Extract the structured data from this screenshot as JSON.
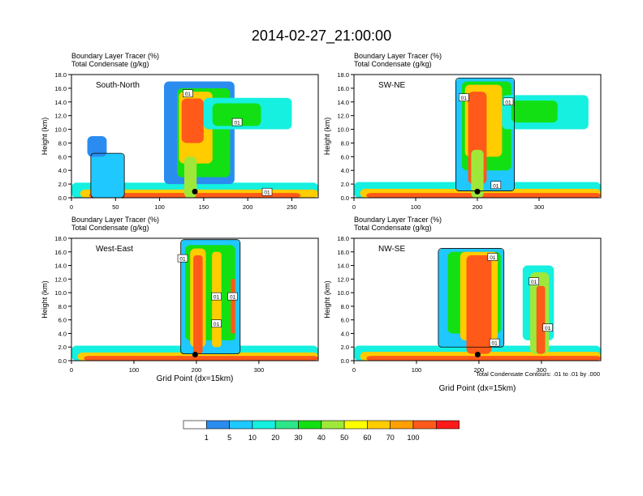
{
  "title": "2014-02-27_21:00:00",
  "contour_note": "Total Condensate Contours: .01 to .01 by .000",
  "xlabel": "Grid Point (dx=15km)",
  "ylabel": "Height (km)",
  "subtitle_line1": "Boundary Layer Tracer   (%)",
  "subtitle_line2": "Total Condensate   (g/kg)",
  "colors": {
    "levels": [
      "#ffffff",
      "#2b8cf0",
      "#1fc8ff",
      "#15f0e0",
      "#2ee68a",
      "#13e013",
      "#9fe83a",
      "#ffff00",
      "#ffcc00",
      "#ffa000",
      "#ff5a1a",
      "#ff1a1a"
    ],
    "contour": "#000000"
  },
  "chart_data": [
    {
      "type": "heatmap",
      "panel": "top-left",
      "label": "South-North",
      "xlim": [
        0,
        280
      ],
      "ylim": [
        0,
        18
      ],
      "xticks": [
        "0",
        "50",
        "100",
        "150",
        "200",
        "250"
      ],
      "xtick_values": [
        0,
        50,
        100,
        150,
        200,
        250
      ],
      "yticks": [
        "0.0",
        "2.0",
        "4.0",
        "6.0",
        "8.0",
        "10.0",
        "12.0",
        "14.0",
        "16.0",
        "18.0"
      ],
      "marker_x": 140,
      "contour_labels": [
        {
          "text": "01",
          "x": 132,
          "y": 15.2
        },
        {
          "text": "01",
          "x": 188,
          "y": 11.0
        },
        {
          "text": "01",
          "x": 222,
          "y": 0.8
        }
      ]
    },
    {
      "type": "heatmap",
      "panel": "top-right",
      "label": "SW-NE",
      "xlim": [
        0,
        400
      ],
      "ylim": [
        0,
        18
      ],
      "xticks": [
        "0",
        "100",
        "200",
        "300"
      ],
      "xtick_values": [
        0,
        100,
        200,
        300
      ],
      "yticks": [
        "0.0",
        "2.0",
        "4.0",
        "6.0",
        "8.0",
        "10.0",
        "12.0",
        "14.0",
        "16.0",
        "18.0"
      ],
      "marker_x": 200,
      "contour_labels": [
        {
          "text": "01",
          "x": 178,
          "y": 14.6
        },
        {
          "text": "01",
          "x": 250,
          "y": 14.0
        },
        {
          "text": "01",
          "x": 230,
          "y": 1.8
        }
      ]
    },
    {
      "type": "heatmap",
      "panel": "bottom-left",
      "label": "West-East",
      "xlim": [
        0,
        395
      ],
      "ylim": [
        0,
        18
      ],
      "xticks": [
        "0",
        "100",
        "200",
        "300"
      ],
      "xtick_values": [
        0,
        100,
        200,
        300
      ],
      "yticks": [
        "0.0",
        "2.0",
        "4.0",
        "6.0",
        "8.0",
        "10.0",
        "12.0",
        "14.0",
        "16.0",
        "18.0"
      ],
      "marker_x": 198,
      "contour_labels": [
        {
          "text": "01",
          "x": 178,
          "y": 15.0
        },
        {
          "text": "01",
          "x": 232,
          "y": 9.4
        },
        {
          "text": "01",
          "x": 258,
          "y": 9.4
        },
        {
          "text": "01",
          "x": 232,
          "y": 5.4
        }
      ]
    },
    {
      "type": "heatmap",
      "panel": "bottom-right",
      "label": "NW-SE",
      "xlim": [
        0,
        395
      ],
      "ylim": [
        0,
        18
      ],
      "xticks": [
        "0",
        "100",
        "200",
        "300"
      ],
      "xtick_values": [
        0,
        100,
        200,
        300
      ],
      "yticks": [
        "0.0",
        "2.0",
        "4.0",
        "6.0",
        "8.0",
        "10.0",
        "12.0",
        "14.0",
        "16.0",
        "18.0"
      ],
      "marker_x": 198,
      "contour_labels": [
        {
          "text": "01",
          "x": 222,
          "y": 15.2
        },
        {
          "text": "01",
          "x": 288,
          "y": 11.6
        },
        {
          "text": "01",
          "x": 310,
          "y": 4.8
        },
        {
          "text": "01",
          "x": 225,
          "y": 2.6
        }
      ]
    }
  ],
  "colorbar": {
    "labels": [
      "1",
      "5",
      "10",
      "20",
      "30",
      "40",
      "50",
      "60",
      "70",
      "100"
    ]
  }
}
